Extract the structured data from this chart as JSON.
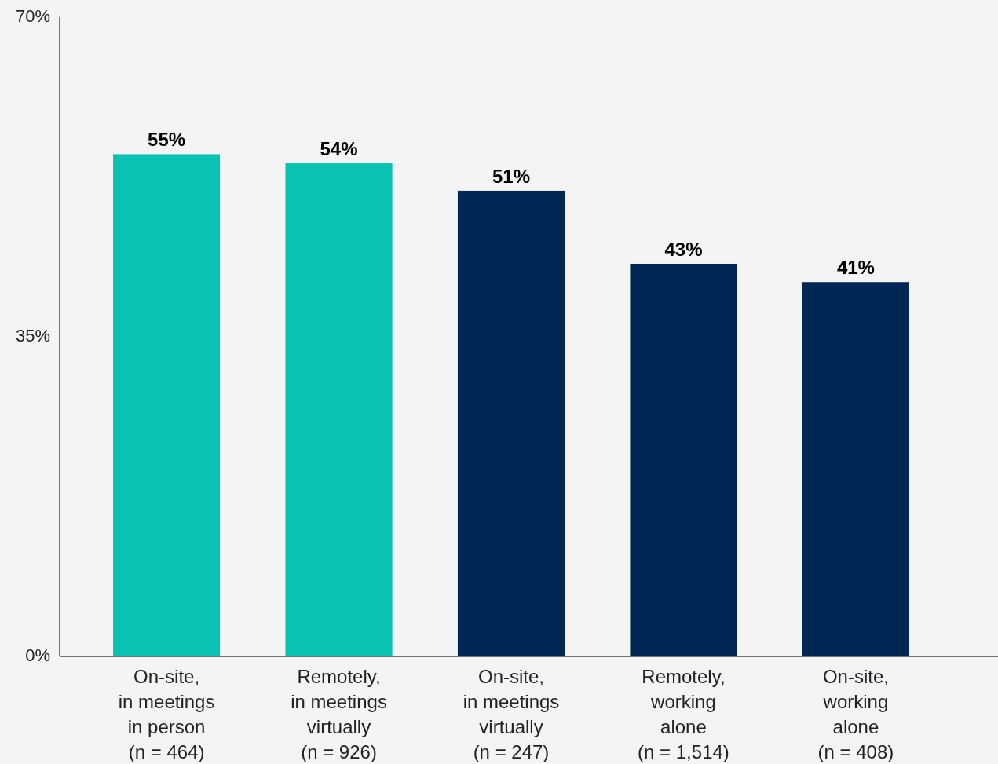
{
  "chart_data": {
    "type": "bar",
    "categories": [
      "On-site,\nin meetings\nin person\n(n = 464)",
      "Remotely,\nin meetings\nvirtually\n(n = 926)",
      "On-site,\nin meetings\nvirtually\n(n = 247)",
      "Remotely,\nworking\nalone\n(n = 1,514)",
      "On-site,\nworking\nalone\n(n = 408)"
    ],
    "values": [
      55,
      54,
      51,
      43,
      41
    ],
    "value_labels": [
      "55%",
      "54%",
      "51%",
      "43%",
      "41%"
    ],
    "colors": [
      "#08c3b3",
      "#08c3b3",
      "#002654",
      "#002654",
      "#002654"
    ],
    "ylim": [
      0,
      70
    ],
    "yticks": [
      {
        "value": 0,
        "label": "0%"
      },
      {
        "value": 35,
        "label": "35%"
      },
      {
        "value": 70,
        "label": "70%"
      }
    ],
    "grid": false
  }
}
